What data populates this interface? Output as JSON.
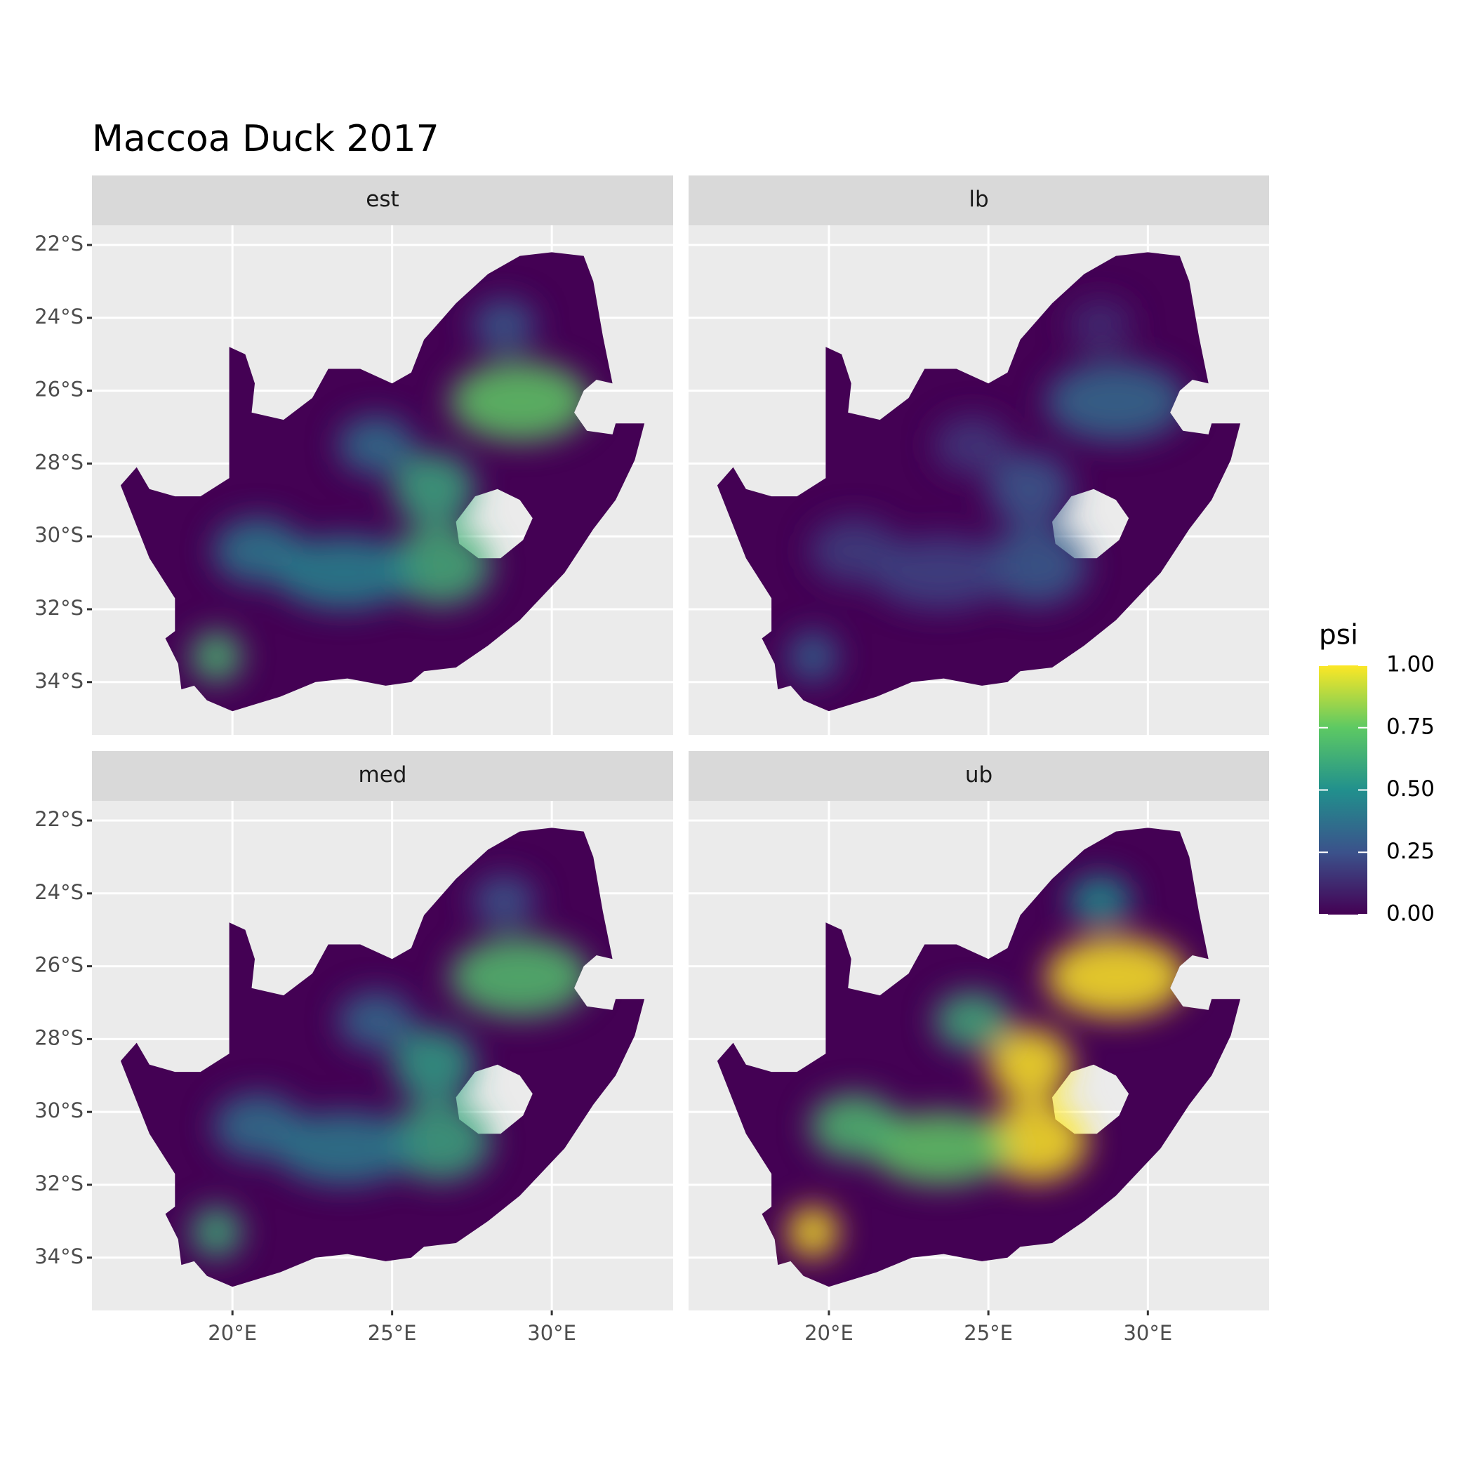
{
  "chart_data": {
    "type": "raster-map",
    "title": "Maccoa Duck 2017",
    "facets": [
      "est",
      "lb",
      "med",
      "ub"
    ],
    "xlim": [
      15.6,
      33.8
    ],
    "ylim": [
      -35.45,
      -21.46
    ],
    "xticks": [
      {
        "value": 20,
        "label": "20°E"
      },
      {
        "value": 25,
        "label": "25°E"
      },
      {
        "value": 30,
        "label": "30°E"
      }
    ],
    "yticks": [
      {
        "value": -22,
        "label": "22°S"
      },
      {
        "value": -24,
        "label": "24°S"
      },
      {
        "value": -26,
        "label": "26°S"
      },
      {
        "value": -28,
        "label": "28°S"
      },
      {
        "value": -30,
        "label": "30°S"
      },
      {
        "value": -32,
        "label": "32°S"
      },
      {
        "value": -34,
        "label": "34°S"
      }
    ],
    "grid": true,
    "legend": {
      "title": "psi",
      "position": "right",
      "lim": [
        0,
        1
      ],
      "ticks": [
        {
          "value": 0,
          "label": "0.00"
        },
        {
          "value": 0.25,
          "label": "0.25"
        },
        {
          "value": 0.5,
          "label": "0.50"
        },
        {
          "value": 0.75,
          "label": "0.75"
        },
        {
          "value": 1,
          "label": "1.00"
        }
      ],
      "colors": [
        "#440154",
        "#3b528b",
        "#21908d",
        "#5dc963",
        "#fde725"
      ]
    }
  }
}
